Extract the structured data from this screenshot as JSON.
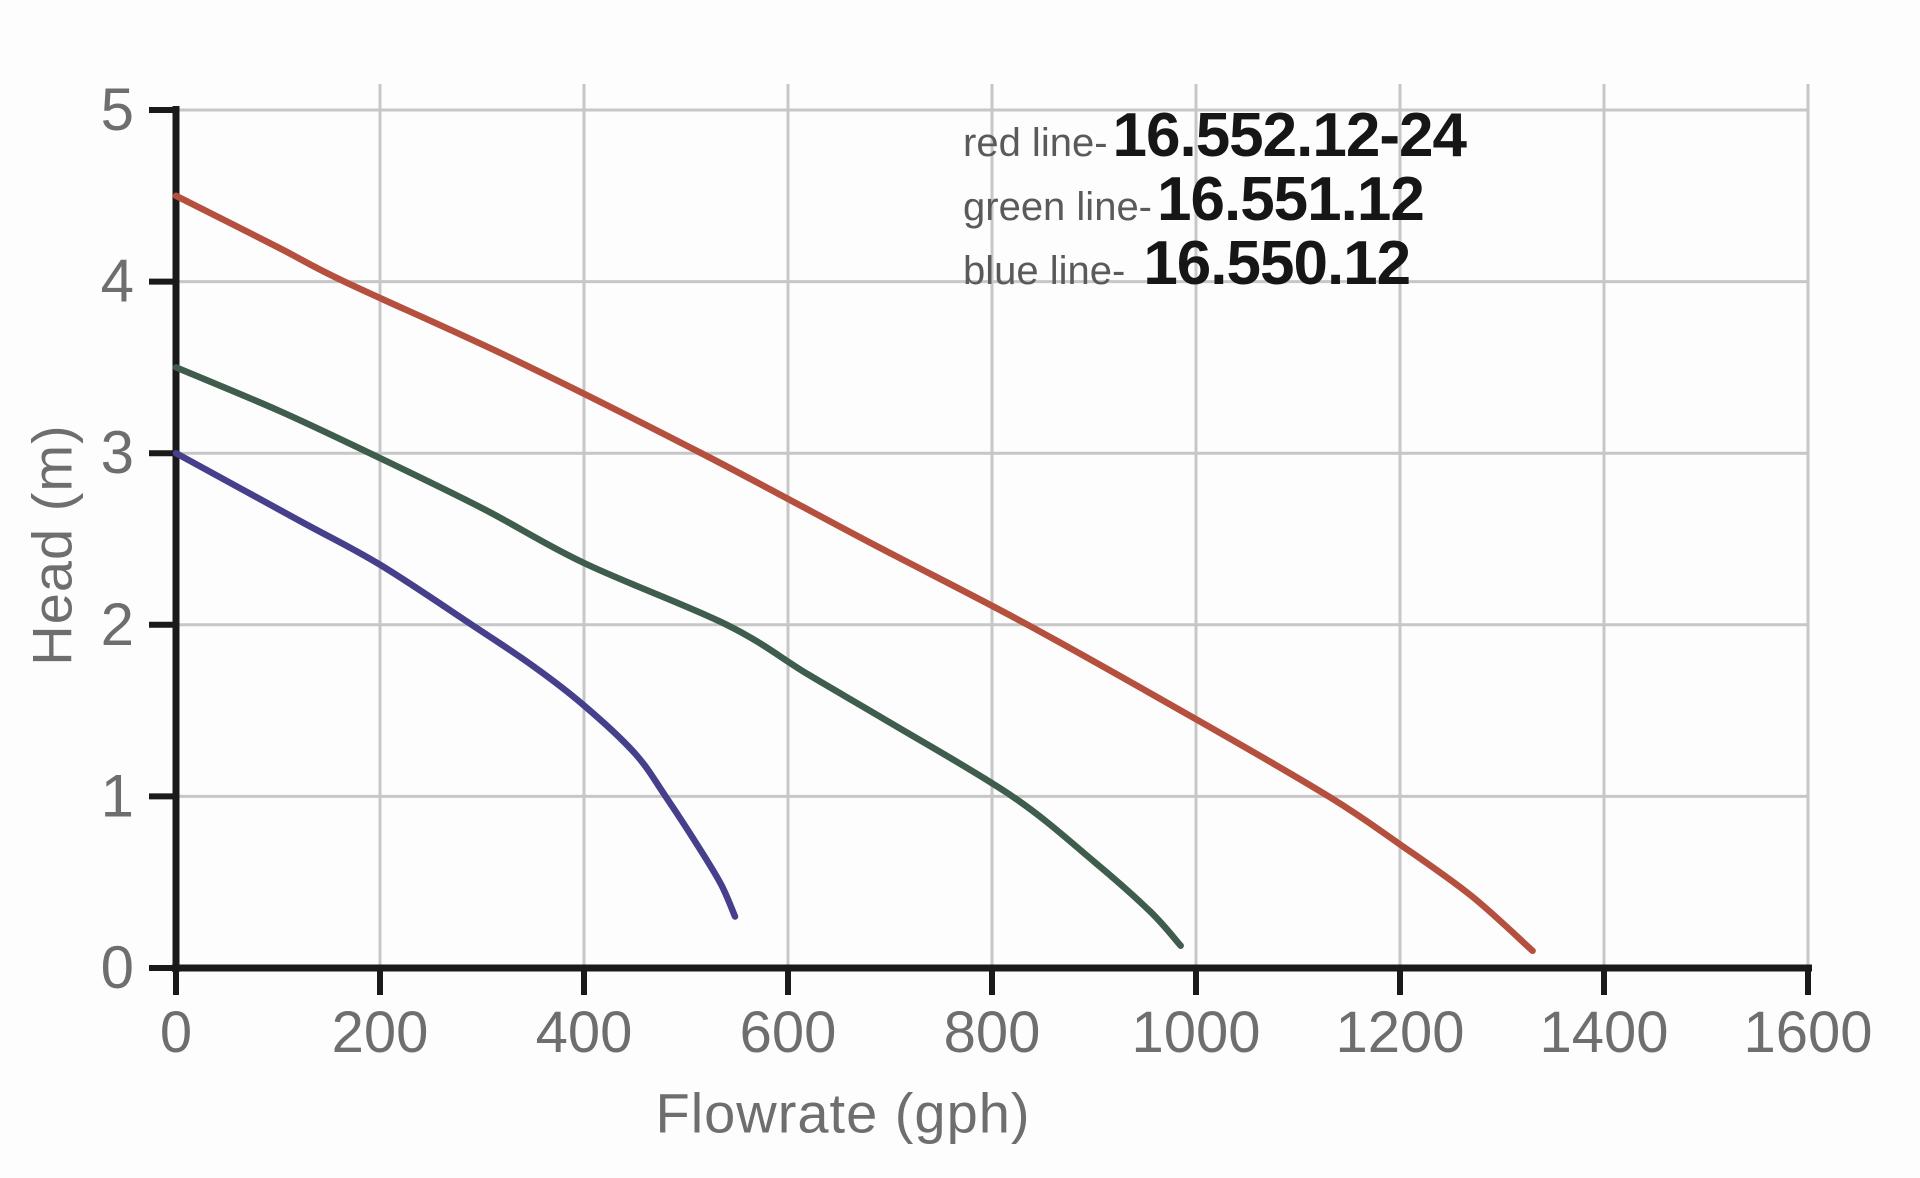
{
  "figure": {
    "xlabel": "Flowrate (gph)",
    "ylabel": "Head (m)"
  },
  "legend": {
    "position": "top-right-inside",
    "entries": [
      {
        "label": "red line-",
        "value": "16.552.12-24",
        "series": "red"
      },
      {
        "label": "green line-",
        "value": "16.551.12",
        "series": "green"
      },
      {
        "label": "blue line-",
        "value": "16.550.12",
        "series": "blue"
      }
    ]
  },
  "colors": {
    "red_line": "#b5503f",
    "green_line": "#3f5d4c",
    "blue_line": "#46408c",
    "grid": "#c7c7c7",
    "axis": "#1a1a1a",
    "tick_text": "#6e6e6e"
  },
  "chart_data": {
    "type": "line",
    "title": "",
    "xlabel": "Flowrate (gph)",
    "ylabel": "Head (m)",
    "xlim": [
      0,
      1600
    ],
    "ylim": [
      0,
      5
    ],
    "x_ticks": [
      0,
      200,
      400,
      600,
      800,
      1000,
      1200,
      1400,
      1600
    ],
    "y_ticks": [
      0,
      1,
      2,
      3,
      4,
      5
    ],
    "grid": true,
    "legend_position": "top-right-inside",
    "series": [
      {
        "name": "16.552.12-24",
        "legend_label": "red line-",
        "color": "#b5503f",
        "points": [
          [
            0,
            4.5
          ],
          [
            100,
            4.2
          ],
          [
            165,
            4.0
          ],
          [
            330,
            3.55
          ],
          [
            515,
            3.0
          ],
          [
            680,
            2.48
          ],
          [
            835,
            2.0
          ],
          [
            1000,
            1.45
          ],
          [
            1130,
            1.0
          ],
          [
            1200,
            0.72
          ],
          [
            1270,
            0.42
          ],
          [
            1330,
            0.1
          ]
        ]
      },
      {
        "name": "16.551.12",
        "legend_label": "green line-",
        "color": "#3f5d4c",
        "points": [
          [
            0,
            3.5
          ],
          [
            100,
            3.25
          ],
          [
            190,
            3.0
          ],
          [
            300,
            2.68
          ],
          [
            400,
            2.36
          ],
          [
            540,
            2.0
          ],
          [
            620,
            1.71
          ],
          [
            700,
            1.43
          ],
          [
            820,
            1.0
          ],
          [
            900,
            0.62
          ],
          [
            955,
            0.33
          ],
          [
            985,
            0.13
          ]
        ]
      },
      {
        "name": "16.550.12",
        "legend_label": "blue line-",
        "color": "#46408c",
        "points": [
          [
            0,
            3.0
          ],
          [
            120,
            2.61
          ],
          [
            200,
            2.35
          ],
          [
            290,
            2.0
          ],
          [
            350,
            1.76
          ],
          [
            400,
            1.53
          ],
          [
            450,
            1.25
          ],
          [
            480,
            1.0
          ],
          [
            515,
            0.68
          ],
          [
            535,
            0.48
          ],
          [
            548,
            0.3
          ]
        ]
      }
    ]
  }
}
